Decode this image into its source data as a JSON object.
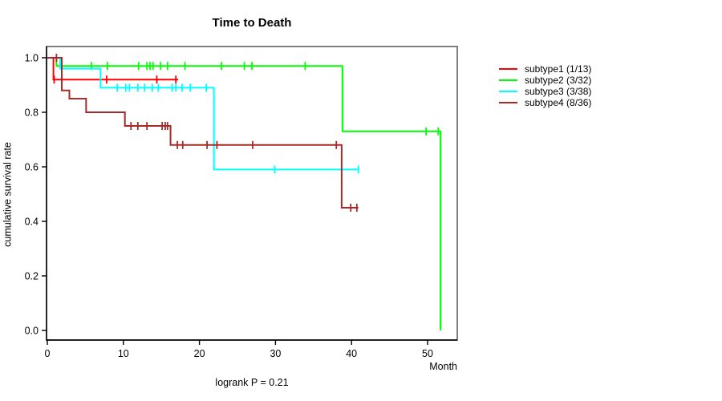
{
  "chart_data": {
    "type": "line",
    "subtype": "kaplan-meier-step-curves",
    "title": "Time to Death",
    "xlabel": "Month",
    "ylabel": "cumulative survival rate",
    "annotation": "logrank P = 0.21",
    "xlim": [
      0,
      54
    ],
    "ylim": [
      0.0,
      1.0
    ],
    "xticks": [
      0,
      10,
      20,
      30,
      40,
      50
    ],
    "yticks": [
      0.0,
      0.2,
      0.4,
      0.6,
      0.8,
      1.0
    ],
    "grid": false,
    "legend_position": "right-outside",
    "series": [
      {
        "name": "subtype1 (1/13)",
        "color": "#ff0000",
        "start_value": 1.0,
        "drops": [
          [
            0.8,
            0.92
          ]
        ],
        "end_month": 17.2,
        "censors": [
          [
            0.9,
            0.92
          ],
          [
            7.8,
            0.92
          ],
          [
            14.4,
            0.92
          ],
          [
            16.9,
            0.92
          ]
        ]
      },
      {
        "name": "subtype2 (3/32)",
        "color": "#00ff00",
        "start_value": 1.0,
        "drops": [
          [
            1.2,
            0.97
          ],
          [
            38.8,
            0.73
          ],
          [
            51.7,
            0.0
          ]
        ],
        "end_month": 51.7,
        "censors": [
          [
            5.8,
            0.97
          ],
          [
            7.9,
            0.97
          ],
          [
            12.0,
            0.97
          ],
          [
            13.1,
            0.97
          ],
          [
            13.5,
            0.97
          ],
          [
            13.9,
            0.97
          ],
          [
            14.9,
            0.97
          ],
          [
            15.8,
            0.97
          ],
          [
            18.1,
            0.97
          ],
          [
            22.9,
            0.97
          ],
          [
            25.9,
            0.97
          ],
          [
            26.9,
            0.97
          ],
          [
            33.9,
            0.97
          ],
          [
            49.8,
            0.73
          ],
          [
            51.4,
            0.73
          ]
        ]
      },
      {
        "name": "subtype3 (3/38)",
        "color": "#00ffff",
        "start_value": 1.0,
        "drops": [
          [
            1.7,
            0.96
          ],
          [
            7.0,
            0.89
          ],
          [
            21.9,
            0.59
          ]
        ],
        "end_month": 40.9,
        "censors": [
          [
            9.2,
            0.89
          ],
          [
            10.3,
            0.89
          ],
          [
            10.8,
            0.89
          ],
          [
            11.9,
            0.89
          ],
          [
            12.8,
            0.89
          ],
          [
            13.8,
            0.89
          ],
          [
            14.6,
            0.89
          ],
          [
            16.4,
            0.89
          ],
          [
            16.9,
            0.89
          ],
          [
            17.7,
            0.89
          ],
          [
            18.8,
            0.89
          ],
          [
            20.9,
            0.89
          ],
          [
            29.9,
            0.59
          ],
          [
            40.9,
            0.59
          ]
        ]
      },
      {
        "name": "subtype4 (8/36)",
        "color": "#a52a2a",
        "start_value": 1.0,
        "drops": [
          [
            1.9,
            0.88
          ],
          [
            2.9,
            0.85
          ],
          [
            5.1,
            0.8
          ],
          [
            10.2,
            0.75
          ],
          [
            16.2,
            0.68
          ],
          [
            38.7,
            0.45
          ]
        ],
        "end_month": 40.9,
        "censors": [
          [
            1.2,
            1.0
          ],
          [
            11.0,
            0.75
          ],
          [
            11.9,
            0.75
          ],
          [
            13.1,
            0.75
          ],
          [
            15.1,
            0.75
          ],
          [
            15.5,
            0.75
          ],
          [
            15.8,
            0.75
          ],
          [
            17.1,
            0.68
          ],
          [
            17.8,
            0.68
          ],
          [
            21.0,
            0.68
          ],
          [
            22.3,
            0.68
          ],
          [
            27.0,
            0.68
          ],
          [
            38.0,
            0.68
          ],
          [
            39.9,
            0.45
          ],
          [
            40.7,
            0.45
          ]
        ]
      }
    ]
  }
}
